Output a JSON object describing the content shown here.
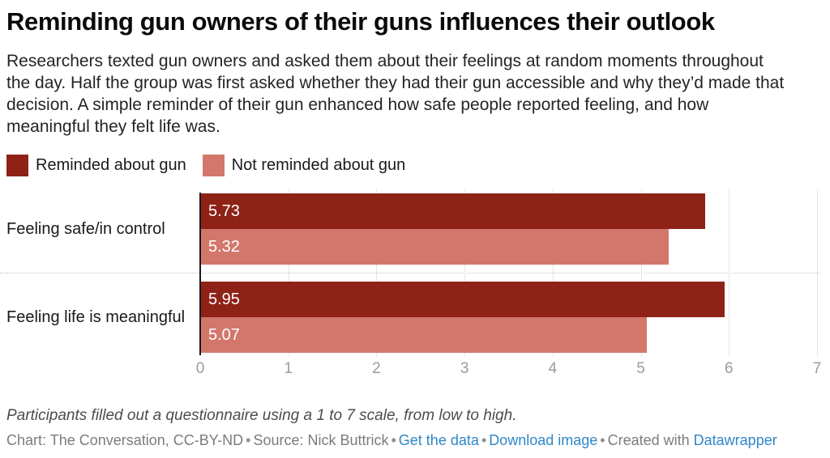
{
  "description": "Researchers texted gun owners and asked them about their feelings at random moments throughout the day. Half the group was first asked whether they had their gun accessible and why they’d made that decision. A simple reminder of their gun enhanced how safe people reported feeling, and how meaningful they felt life was.",
  "chart_data": {
    "type": "bar",
    "orientation": "horizontal",
    "title": "Reminding gun owners of their guns influences their outlook",
    "categories": [
      "Feeling safe/in control",
      "Feeling life is meaningful"
    ],
    "series": [
      {
        "name": "Reminded about gun",
        "color": "#8e2217",
        "values": [
          5.73,
          5.95
        ]
      },
      {
        "name": "Not reminded about gun",
        "color": "#d3776d",
        "values": [
          5.32,
          5.07
        ]
      }
    ],
    "xlim": [
      0,
      7
    ],
    "xticks": [
      0,
      1,
      2,
      3,
      4,
      5,
      6,
      7
    ],
    "grid": "vertical",
    "legend_position": "top-left",
    "value_labels_inside_bars": true
  },
  "footer": {
    "note": "Participants filled out a questionnaire using a 1 to 7 scale, from low to high.",
    "byline": "Chart: The Conversation, CC-BY-ND",
    "source": "Source: Nick Buttrick",
    "bullet": "•",
    "links": {
      "get_data": "Get the data",
      "download": "Download image",
      "created_with": "Created with",
      "datawrapper": "Datawrapper"
    }
  },
  "colors": {
    "dark_red": "#8e2217",
    "light_red": "#d3776d",
    "link_blue": "#2f87c8"
  }
}
